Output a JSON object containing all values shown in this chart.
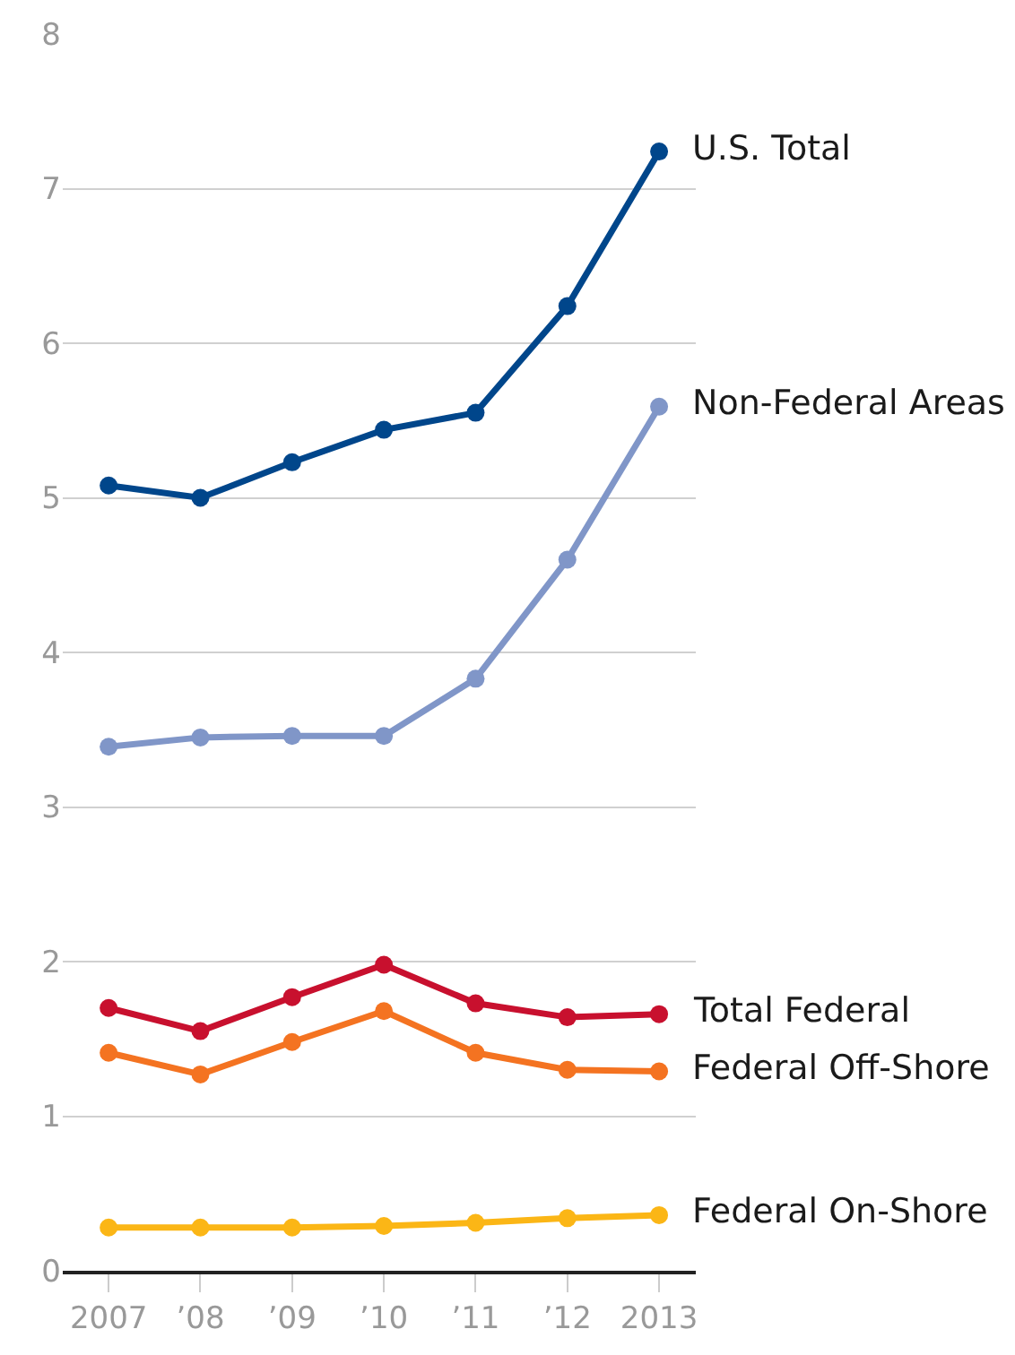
{
  "chart_data": {
    "type": "line",
    "categories": [
      "2007",
      "’08",
      "’09",
      "’10",
      "’11",
      "’12",
      "2013"
    ],
    "series": [
      {
        "name": "U.S. Total",
        "color": "#00468b",
        "values": [
          5.08,
          5.0,
          5.23,
          5.44,
          5.55,
          6.24,
          7.24
        ]
      },
      {
        "name": "Non-Federal Areas",
        "color": "#8096c8",
        "values": [
          3.39,
          3.45,
          3.46,
          3.46,
          3.83,
          4.6,
          5.59
        ]
      },
      {
        "name": "Total Federal",
        "color": "#c8102e",
        "values": [
          1.7,
          1.55,
          1.77,
          1.98,
          1.73,
          1.64,
          1.66
        ]
      },
      {
        "name": "Federal Off-Shore",
        "color": "#f47321",
        "values": [
          1.41,
          1.27,
          1.48,
          1.68,
          1.41,
          1.3,
          1.29
        ]
      },
      {
        "name": "Federal On-Shore",
        "color": "#fbb616",
        "values": [
          0.28,
          0.28,
          0.28,
          0.29,
          0.31,
          0.34,
          0.36
        ]
      }
    ],
    "ylim": [
      0,
      8
    ],
    "yticks": [
      0,
      1,
      2,
      3,
      4,
      5,
      6,
      7,
      8
    ],
    "grid": "y",
    "legend": false,
    "marker": "circle",
    "line_style": "solid"
  }
}
